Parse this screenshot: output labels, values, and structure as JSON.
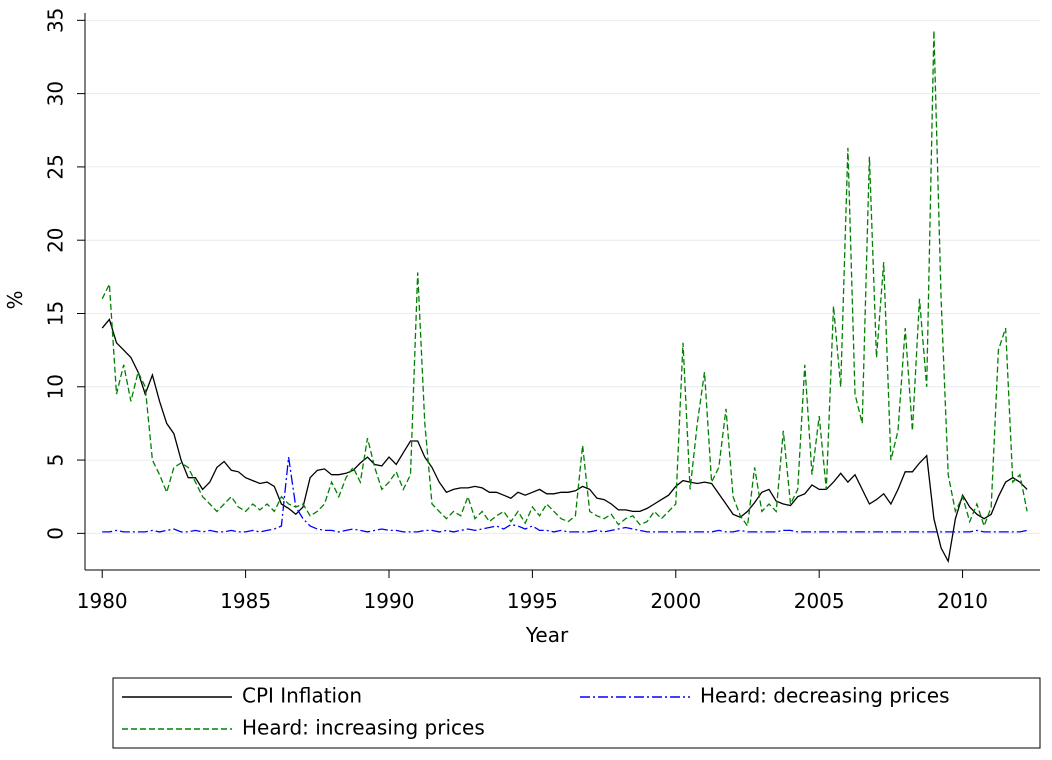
{
  "chart_data": {
    "type": "line",
    "x_label": "Year",
    "y_label": "%",
    "x": [
      1980,
      1980.25,
      1980.5,
      1980.75,
      1981,
      1981.25,
      1981.5,
      1981.75,
      1982,
      1982.25,
      1982.5,
      1982.75,
      1983,
      1983.25,
      1983.5,
      1983.75,
      1984,
      1984.25,
      1984.5,
      1984.75,
      1985,
      1985.25,
      1985.5,
      1985.75,
      1986,
      1986.25,
      1986.5,
      1986.75,
      1987,
      1987.25,
      1987.5,
      1987.75,
      1988,
      1988.25,
      1988.5,
      1988.75,
      1989,
      1989.25,
      1989.5,
      1989.75,
      1990,
      1990.25,
      1990.5,
      1990.75,
      1991,
      1991.25,
      1991.5,
      1991.75,
      1992,
      1992.25,
      1992.5,
      1992.75,
      1993,
      1993.25,
      1993.5,
      1993.75,
      1994,
      1994.25,
      1994.5,
      1994.75,
      1995,
      1995.25,
      1995.5,
      1995.75,
      1996,
      1996.25,
      1996.5,
      1996.75,
      1997,
      1997.25,
      1997.5,
      1997.75,
      1998,
      1998.25,
      1998.5,
      1998.75,
      1999,
      1999.25,
      1999.5,
      1999.75,
      2000,
      2000.25,
      2000.5,
      2000.75,
      2001,
      2001.25,
      2001.5,
      2001.75,
      2002,
      2002.25,
      2002.5,
      2002.75,
      2003,
      2003.25,
      2003.5,
      2003.75,
      2004,
      2004.25,
      2004.5,
      2004.75,
      2005,
      2005.25,
      2005.5,
      2005.75,
      2006,
      2006.25,
      2006.5,
      2006.75,
      2007,
      2007.25,
      2007.5,
      2007.75,
      2008,
      2008.25,
      2008.5,
      2008.75,
      2009,
      2009.25,
      2009.5,
      2009.75,
      2010,
      2010.25,
      2010.5,
      2010.75,
      2011,
      2011.25,
      2011.5,
      2011.75,
      2012,
      2012.25
    ],
    "series": [
      {
        "name": "CPI Inflation",
        "color": "#000000",
        "style": "solid",
        "values": [
          14,
          14.6,
          13,
          12.5,
          12,
          11,
          9.5,
          10.8,
          9,
          7.5,
          6.8,
          5,
          3.8,
          3.8,
          3,
          3.5,
          4.5,
          4.9,
          4.3,
          4.2,
          3.8,
          3.6,
          3.4,
          3.5,
          3.2,
          2,
          1.7,
          1.3,
          1.8,
          3.8,
          4.3,
          4.4,
          4,
          4,
          4.1,
          4.3,
          4.8,
          5.2,
          4.7,
          4.6,
          5.2,
          4.7,
          5.5,
          6.3,
          6.3,
          5.2,
          4.5,
          3.5,
          2.8,
          3,
          3.1,
          3.1,
          3.2,
          3.1,
          2.8,
          2.8,
          2.6,
          2.4,
          2.8,
          2.6,
          2.8,
          3,
          2.7,
          2.7,
          2.8,
          2.8,
          2.9,
          3.2,
          3,
          2.4,
          2.3,
          2,
          1.6,
          1.6,
          1.5,
          1.5,
          1.7,
          2,
          2.3,
          2.6,
          3.2,
          3.6,
          3.5,
          3.4,
          3.5,
          3.4,
          2.7,
          2,
          1.3,
          1.1,
          1.5,
          2.1,
          2.8,
          3,
          2.2,
          2,
          1.9,
          2.5,
          2.7,
          3.3,
          3,
          3,
          3.5,
          4.1,
          3.5,
          4,
          3,
          2,
          2.3,
          2.7,
          2,
          3,
          4.2,
          4.2,
          4.8,
          5.3,
          1,
          -1,
          -1.9,
          1,
          2.6,
          1.8,
          1.3,
          1,
          1.3,
          2.5,
          3.5,
          3.8,
          3.5,
          3
        ]
      },
      {
        "name": "Heard: decreasing prices",
        "color": "#0000ff",
        "style": "dashdot",
        "values": [
          0.1,
          0.1,
          0.2,
          0.1,
          0.1,
          0.1,
          0.1,
          0.2,
          0.1,
          0.2,
          0.3,
          0.1,
          0.1,
          0.2,
          0.1,
          0.2,
          0.1,
          0.1,
          0.2,
          0.1,
          0.1,
          0.2,
          0.1,
          0.2,
          0.3,
          0.5,
          5.2,
          1.8,
          1,
          0.5,
          0.3,
          0.2,
          0.2,
          0.1,
          0.2,
          0.3,
          0.2,
          0.1,
          0.2,
          0.3,
          0.2,
          0.2,
          0.1,
          0.1,
          0.1,
          0.2,
          0.2,
          0.1,
          0.2,
          0.1,
          0.2,
          0.3,
          0.2,
          0.3,
          0.4,
          0.5,
          0.3,
          0.6,
          0.5,
          0.3,
          0.5,
          0.2,
          0.2,
          0.1,
          0.2,
          0.1,
          0.1,
          0.1,
          0.1,
          0.2,
          0.1,
          0.2,
          0.3,
          0.4,
          0.3,
          0.2,
          0.1,
          0.1,
          0.1,
          0.1,
          0.1,
          0.1,
          0.1,
          0.1,
          0.1,
          0.1,
          0.2,
          0.1,
          0.1,
          0.2,
          0.1,
          0.1,
          0.1,
          0.1,
          0.1,
          0.2,
          0.2,
          0.1,
          0.1,
          0.1,
          0.1,
          0.1,
          0.1,
          0.1,
          0.1,
          0.1,
          0.1,
          0.1,
          0.1,
          0.1,
          0.1,
          0.1,
          0.1,
          0.1,
          0.1,
          0.1,
          0.1,
          0.1,
          0.1,
          0.1,
          0.1,
          0.1,
          0.2,
          0.1,
          0.1,
          0.1,
          0.1,
          0.1,
          0.1,
          0.2
        ]
      },
      {
        "name": "Heard: increasing prices",
        "color": "#008000",
        "style": "dashed",
        "values": [
          16,
          17,
          9.5,
          11.5,
          9,
          11,
          10,
          5,
          4,
          2.8,
          4.5,
          4.8,
          4.5,
          3.5,
          2.5,
          2,
          1.5,
          2,
          2.5,
          1.8,
          1.5,
          2,
          1.6,
          2,
          1.5,
          2.5,
          2,
          1.8,
          2,
          1.2,
          1.5,
          2,
          3.5,
          2.5,
          3.8,
          4.5,
          3.5,
          6.5,
          4.5,
          3,
          3.5,
          4.2,
          3,
          4,
          17.8,
          7.5,
          2,
          1.5,
          1,
          1.5,
          1.2,
          2.5,
          1,
          1.5,
          0.8,
          1.2,
          1.5,
          0.8,
          1.5,
          0.7,
          1.8,
          1.2,
          2,
          1.5,
          1,
          0.8,
          1.2,
          6,
          1.5,
          1.2,
          1,
          1.3,
          0.6,
          1,
          1.2,
          0.6,
          0.8,
          1.5,
          1,
          1.5,
          2,
          13,
          3,
          7.5,
          11,
          3.5,
          4.5,
          8.5,
          2.5,
          1.2,
          0.5,
          4.5,
          1.5,
          2,
          1.5,
          7,
          2,
          3,
          11.5,
          4,
          8,
          3,
          15.5,
          10,
          26.3,
          9.5,
          7.5,
          25.7,
          12,
          18.5,
          5,
          7,
          14,
          7,
          16,
          10,
          34.3,
          16,
          4,
          1.5,
          2.5,
          0.8,
          2,
          0.5,
          1.8,
          12.5,
          14,
          3.5,
          4,
          1.5
        ]
      }
    ],
    "xlim": [
      1979.4,
      2012.7
    ],
    "ylim": [
      -2.5,
      35.5
    ],
    "xticks": [
      1980,
      1985,
      1990,
      1995,
      2000,
      2005,
      2010
    ],
    "yticks": [
      0,
      5,
      10,
      15,
      20,
      25,
      30,
      35
    ],
    "grid": true,
    "legend": "bottom"
  }
}
